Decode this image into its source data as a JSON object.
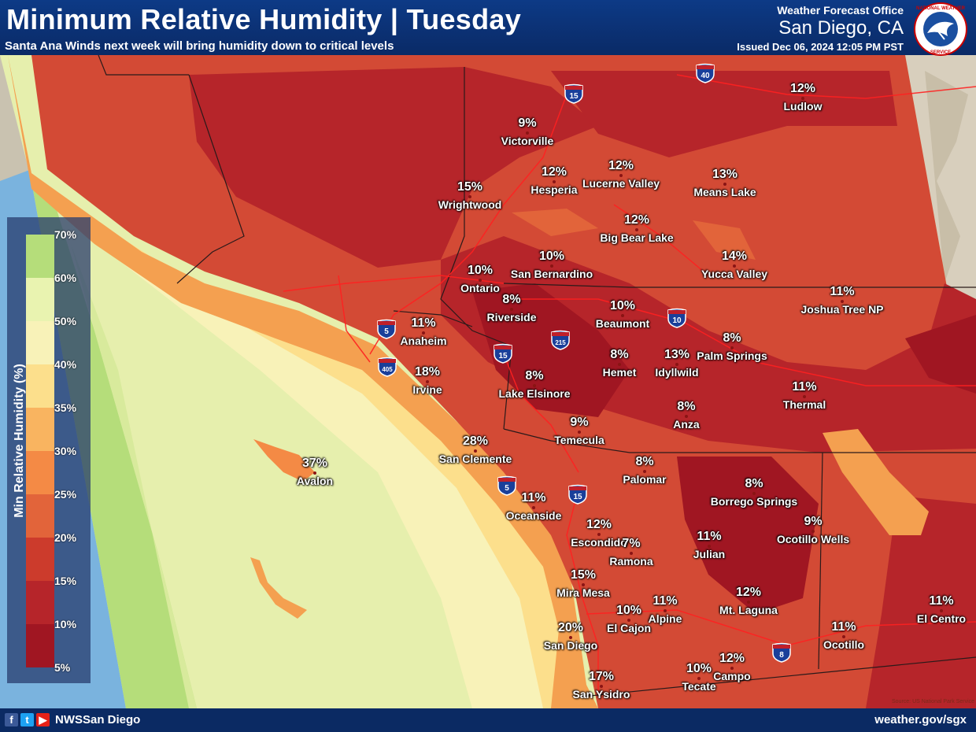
{
  "header": {
    "title": "Minimum Relative Humidity | Tuesday",
    "subtitle": "Santa Ana Winds next week will bring humidity down to critical levels",
    "office": "Weather Forecast Office",
    "office_name": "San Diego, CA",
    "issued": "Issued Dec 06, 2024 12:05 PM PST",
    "logo_text": "NATIONAL WEATHER SERVICE"
  },
  "legend": {
    "title": "Min Relative Humidity (%)",
    "ticks": [
      "70%",
      "60%",
      "50%",
      "40%",
      "35%",
      "30%",
      "25%",
      "20%",
      "15%",
      "10%",
      "5%"
    ],
    "colors": [
      "#b5dd7a",
      "#e9f3b0",
      "#f8f2b8",
      "#fcdf8c",
      "#f9b460",
      "#f48a45",
      "#e2643a",
      "#cc3b2c",
      "#b6252a",
      "#a01622"
    ]
  },
  "places": [
    {
      "value": "9%",
      "name": "Victorville"
    },
    {
      "value": "12%",
      "name": "Hesperia"
    },
    {
      "value": "12%",
      "name": "Lucerne Valley"
    },
    {
      "value": "13%",
      "name": "Means Lake"
    },
    {
      "value": "12%",
      "name": "Ludlow"
    },
    {
      "value": "15%",
      "name": "Wrightwood"
    },
    {
      "value": "12%",
      "name": "Big Bear Lake"
    },
    {
      "value": "10%",
      "name": "San Bernardino"
    },
    {
      "value": "14%",
      "name": "Yucca Valley"
    },
    {
      "value": "10%",
      "name": "Ontario"
    },
    {
      "value": "8%",
      "name": "Riverside"
    },
    {
      "value": "10%",
      "name": "Beaumont"
    },
    {
      "value": "11%",
      "name": "Joshua Tree NP"
    },
    {
      "value": "11%",
      "name": "Anaheim"
    },
    {
      "value": "8%",
      "name": "Palm Springs"
    },
    {
      "value": "8%",
      "name": "Hemet"
    },
    {
      "value": "13%",
      "name": "Idyllwild"
    },
    {
      "value": "18%",
      "name": "Irvine"
    },
    {
      "value": "8%",
      "name": "Lake Elsinore"
    },
    {
      "value": "11%",
      "name": "Thermal"
    },
    {
      "value": "8%",
      "name": "Anza"
    },
    {
      "value": "9%",
      "name": "Temecula"
    },
    {
      "value": "28%",
      "name": "San Clemente"
    },
    {
      "value": "37%",
      "name": "Avalon"
    },
    {
      "value": "8%",
      "name": "Palomar"
    },
    {
      "value": "8%",
      "name": "Borrego Springs"
    },
    {
      "value": "11%",
      "name": "Oceanside"
    },
    {
      "value": "9%",
      "name": "Ocotillo Wells"
    },
    {
      "value": "12%",
      "name": "Escondido"
    },
    {
      "value": "7%",
      "name": "Ramona"
    },
    {
      "value": "11%",
      "name": "Julian"
    },
    {
      "value": "15%",
      "name": "Mira Mesa"
    },
    {
      "value": "12%",
      "name": "Mt. Laguna"
    },
    {
      "value": "10%",
      "name": "El Cajon"
    },
    {
      "value": "11%",
      "name": "Alpine"
    },
    {
      "value": "11%",
      "name": "El Centro"
    },
    {
      "value": "20%",
      "name": "San Diego"
    },
    {
      "value": "11%",
      "name": "Ocotillo"
    },
    {
      "value": "12%",
      "name": "Campo"
    },
    {
      "value": "10%",
      "name": "Tecate"
    },
    {
      "value": "17%",
      "name": "San Ysidro"
    }
  ],
  "highways": [
    "40",
    "15",
    "5",
    "10",
    "215",
    "15",
    "405",
    "5",
    "15",
    "8"
  ],
  "footer": {
    "social": [
      "f",
      "t",
      "▶"
    ],
    "handle": "NWSSan Diego",
    "website": "weather.gov/sgx",
    "source": "Source: US National Park Service"
  }
}
